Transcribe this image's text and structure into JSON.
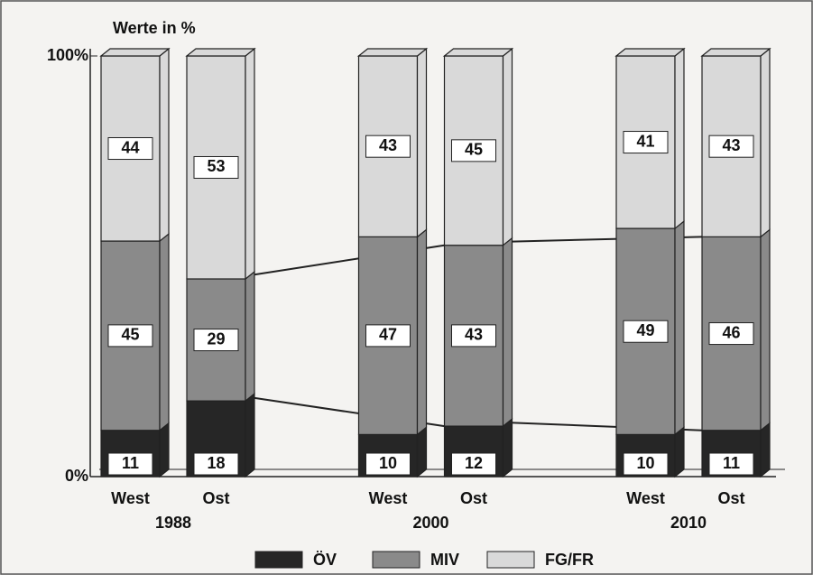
{
  "chart_data": {
    "type": "stacked_bar_3d",
    "axis_label": "Werte in %",
    "categories": [
      "West",
      "Ost",
      "West",
      "Ost",
      "West",
      "Ost"
    ],
    "groups": [
      "1988",
      "2000",
      "2010"
    ],
    "series": [
      {
        "name": "ÖV",
        "color": "#262626",
        "values": [
          11,
          18,
          10,
          12,
          10,
          11
        ]
      },
      {
        "name": "MIV",
        "color": "#8a8a8a",
        "values": [
          45,
          29,
          47,
          43,
          49,
          46
        ]
      },
      {
        "name": "FG/FR",
        "color": "#d9d9d9",
        "values": [
          44,
          53,
          43,
          45,
          41,
          43
        ]
      }
    ],
    "ylim": [
      0,
      100
    ],
    "yticks": [
      {
        "value": 0,
        "label": "0%"
      },
      {
        "value": 100,
        "label": "100%"
      }
    ]
  }
}
